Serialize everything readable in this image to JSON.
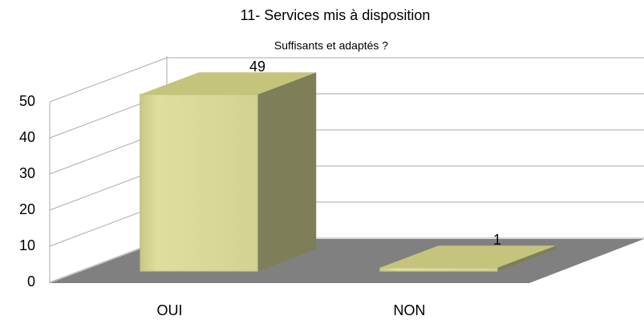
{
  "chart_data": {
    "type": "bar3d",
    "title": "11- Services mis à disposition",
    "subtitle": "Suffisants et adaptés ?",
    "categories": [
      "OUI",
      "NON"
    ],
    "values": [
      49,
      1
    ],
    "color": "#d4d494",
    "ylim": [
      0,
      50
    ],
    "yticks": [
      0,
      10,
      20,
      30,
      40,
      50
    ],
    "grid": true
  }
}
